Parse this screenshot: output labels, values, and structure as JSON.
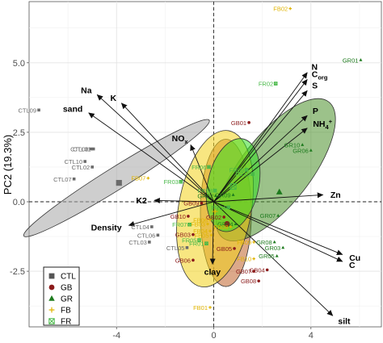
{
  "chart_data": {
    "type": "scatter",
    "title": "",
    "xlabel": "",
    "ylabel": "PC2 (19.3%)",
    "xlim": [
      -7.6,
      6.9
    ],
    "ylim": [
      -4.5,
      7.2
    ],
    "x_ticks": [
      {
        "value": -4,
        "label": "-4"
      },
      {
        "value": 0,
        "label": "0"
      },
      {
        "value": 4,
        "label": "4"
      }
    ],
    "y_ticks": [
      {
        "value": -2.5,
        "label": "-2.5"
      },
      {
        "value": 0,
        "label": "0.0"
      },
      {
        "value": 2.5,
        "label": "2.5"
      },
      {
        "value": 5,
        "label": "5.0"
      }
    ],
    "grid": true,
    "legend_position": "bottom-left",
    "groups": [
      {
        "name": "CTL",
        "color": "#6b6b6b",
        "ellipse_color": "#a6a6a6",
        "marker": "square",
        "ellipse": {
          "cx": -4.0,
          "cy": 0.85,
          "rx": 4.5,
          "ry": 0.4,
          "angle": -32
        },
        "centroid": [
          -3.9,
          0.68
        ],
        "points": [
          {
            "label": "CTL09",
            "x": -7.2,
            "y": 3.3
          },
          {
            "label": "CTL08",
            "x": -5.05,
            "y": 1.9
          },
          {
            "label": "CTL01",
            "x": -4.95,
            "y": 1.9
          },
          {
            "label": "CTL10",
            "x": -5.3,
            "y": 1.45
          },
          {
            "label": "CTL02",
            "x": -5.0,
            "y": 1.25
          },
          {
            "label": "CTL07",
            "x": -5.75,
            "y": 0.82
          },
          {
            "label": "CTL04",
            "x": -2.55,
            "y": -0.9
          },
          {
            "label": "CTL06",
            "x": -2.3,
            "y": -1.2
          },
          {
            "label": "CTL03",
            "x": -2.65,
            "y": -1.45
          },
          {
            "label": "CTL05",
            "x": -1.1,
            "y": -1.65
          }
        ]
      },
      {
        "name": "GB",
        "color": "#8b1a1a",
        "ellipse_color": "#c0632a",
        "marker": "circle",
        "ellipse": {
          "cx": 0.5,
          "cy": -0.4,
          "rx": 1.05,
          "ry": 2.65,
          "angle": 0
        },
        "centroid": [
          0.55,
          -0.8
        ],
        "points": [
          {
            "label": "GB01",
            "x": 1.45,
            "y": 2.85
          },
          {
            "label": "GB02",
            "x": 0.42,
            "y": -0.55
          },
          {
            "label": "GB03",
            "x": -0.85,
            "y": -1.18
          },
          {
            "label": "GB04",
            "x": 2.2,
            "y": -2.45
          },
          {
            "label": "GB05",
            "x": 0.85,
            "y": -1.68
          },
          {
            "label": "GB06",
            "x": -0.85,
            "y": -2.1
          },
          {
            "label": "GB07",
            "x": 1.65,
            "y": -2.5
          },
          {
            "label": "GB08",
            "x": 1.85,
            "y": -2.85
          },
          {
            "label": "GB09",
            "x": -0.5,
            "y": -0.05
          },
          {
            "label": "GB10",
            "x": -1.05,
            "y": -0.52
          }
        ]
      },
      {
        "name": "GR",
        "color": "#1e7b1e",
        "ellipse_color": "#4a8f2a",
        "marker": "triangle",
        "ellipse": {
          "cx": 2.55,
          "cy": 1.15,
          "rx": 3.55,
          "ry": 1.25,
          "angle": -52
        },
        "centroid": [
          2.7,
          0.35
        ],
        "points": [
          {
            "label": "GR01",
            "x": 6.05,
            "y": 5.1
          },
          {
            "label": "GR02",
            "x": 0.08,
            "y": 0.22
          },
          {
            "label": "GR03",
            "x": 2.85,
            "y": -1.65
          },
          {
            "label": "GR04",
            "x": 0.9,
            "y": -0.8
          },
          {
            "label": "GR05",
            "x": 2.6,
            "y": -1.95
          },
          {
            "label": "GR06",
            "x": 4.0,
            "y": 1.85
          },
          {
            "label": "GR07",
            "x": 2.65,
            "y": -0.5
          },
          {
            "label": "GR08",
            "x": 2.5,
            "y": -1.45
          },
          {
            "label": "GR09",
            "x": 0.8,
            "y": 0.25
          },
          {
            "label": "GR10",
            "x": 3.65,
            "y": 2.05
          }
        ]
      },
      {
        "name": "FB",
        "color": "#e0b400",
        "ellipse_color": "#f2d21a",
        "marker": "plus",
        "ellipse": {
          "cx": 0.05,
          "cy": -0.25,
          "rx": 1.5,
          "ry": 2.85,
          "angle": 10
        },
        "centroid": [
          0.05,
          -0.35
        ],
        "points": [
          {
            "label": "FB02",
            "x": 3.15,
            "y": 6.95
          },
          {
            "label": "FB01",
            "x": -0.15,
            "y": -3.8
          },
          {
            "label": "FB03",
            "x": -0.25,
            "y": -0.8
          },
          {
            "label": "FB04",
            "x": -0.15,
            "y": -1.05
          },
          {
            "label": "FB05",
            "x": -0.1,
            "y": -1.2
          },
          {
            "label": "FB06",
            "x": -0.15,
            "y": -0.65
          },
          {
            "label": "FB07",
            "x": -2.7,
            "y": 0.85
          },
          {
            "label": "FB08",
            "x": 0.7,
            "y": -0.9
          },
          {
            "label": "FB09",
            "x": 1.65,
            "y": -1.45
          },
          {
            "label": "FB10",
            "x": 1.65,
            "y": -2.05
          }
        ]
      },
      {
        "name": "FR",
        "color": "#47b847",
        "ellipse_color": "#33dd22",
        "marker": "square-x",
        "ellipse": {
          "cx": 0.8,
          "cy": 0.6,
          "rx": 1.05,
          "ry": 1.7,
          "angle": 12
        },
        "centroid": [
          0.8,
          0.55
        ],
        "points": [
          {
            "label": "FR02",
            "x": 2.55,
            "y": 4.25
          },
          {
            "label": "FR03",
            "x": -1.35,
            "y": 0.72
          },
          {
            "label": "FR04",
            "x": 0.6,
            "y": -0.2
          },
          {
            "label": "FR05",
            "x": -0.6,
            "y": -1.38
          },
          {
            "label": "FR06",
            "x": -0.2,
            "y": 1.25
          },
          {
            "label": "FR07",
            "x": -1.0,
            "y": -0.82
          },
          {
            "label": "FR08",
            "x": 0.05,
            "y": 0.4
          },
          {
            "label": "FR09",
            "x": 1.35,
            "y": 1.15
          },
          {
            "label": "FR10",
            "x": 1.6,
            "y": 1.0
          },
          {
            "label": "FR01",
            "x": -0.3,
            "y": -1.5
          }
        ]
      }
    ],
    "loadings": [
      {
        "label": "N",
        "x": 3.85,
        "y": 4.65
      },
      {
        "label": "C",
        "sub": "org",
        "x": 3.85,
        "y": 4.4
      },
      {
        "label": "S",
        "x": 3.85,
        "y": 4.0
      },
      {
        "label": "Na",
        "x": -4.8,
        "y": 3.85
      },
      {
        "label": "K",
        "x": -3.8,
        "y": 3.55
      },
      {
        "label": "sand",
        "x": -5.15,
        "y": 3.2
      },
      {
        "label": "P",
        "x": 3.85,
        "y": 3.1
      },
      {
        "label": "NH",
        "sub": "4",
        "sup": "+",
        "x": 3.85,
        "y": 2.65
      },
      {
        "label": "NO",
        "sub": "x",
        "x": -0.95,
        "y": 2.05
      },
      {
        "label": "Zn",
        "x": 4.5,
        "y": 0.25
      },
      {
        "label": "K2",
        "x": -2.45,
        "y": 0.05
      },
      {
        "label": "Density",
        "x": -3.5,
        "y": -0.85
      },
      {
        "label": "Cu",
        "x": 5.3,
        "y": -1.9
      },
      {
        "label": "C",
        "x": 5.3,
        "y": -2.15
      },
      {
        "label": "clay",
        "x": -0.05,
        "y": -2.25
      },
      {
        "label": "silt",
        "x": 4.9,
        "y": -4.1
      }
    ]
  },
  "legend": {
    "items": [
      {
        "name": "CTL",
        "marker": "square",
        "color": "#555555"
      },
      {
        "name": "GB",
        "marker": "circle",
        "color": "#8b1a1a"
      },
      {
        "name": "GR",
        "marker": "triangle",
        "color": "#1e7b1e"
      },
      {
        "name": "FB",
        "marker": "plus",
        "color": "#e0b400"
      },
      {
        "name": "FR",
        "marker": "square-x",
        "color": "#47b847"
      }
    ]
  }
}
